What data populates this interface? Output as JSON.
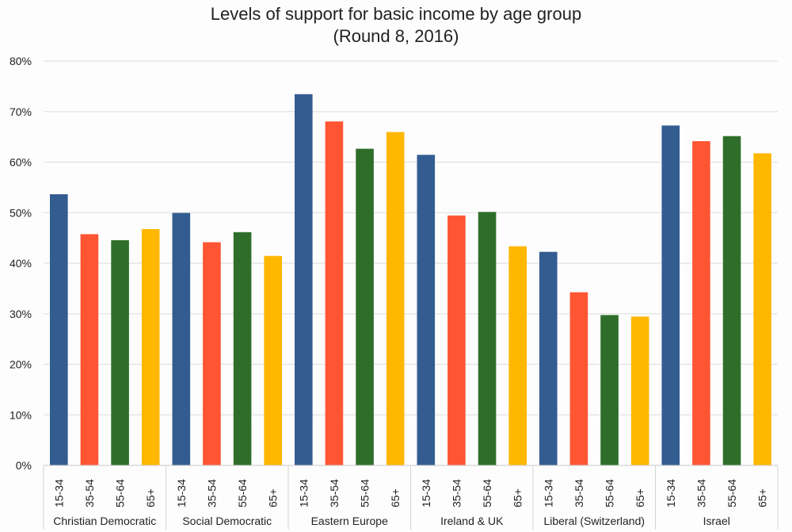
{
  "chart_data": {
    "type": "bar",
    "title": "Levels of support for basic income by age group",
    "subtitle": "(Round 8, 2016)",
    "xlabel": "",
    "ylabel": "",
    "ylim": [
      0,
      80
    ],
    "y_ticks": [
      "0%",
      "10%",
      "20%",
      "30%",
      "40%",
      "50%",
      "60%",
      "70%",
      "80%"
    ],
    "grid": true,
    "legend": "none",
    "age_groups": [
      "15-34",
      "35-54",
      "55-64",
      "65+"
    ],
    "colors": {
      "15-34": "#335c91",
      "35-54": "#ff5533",
      "55-64": "#2f6e2a",
      "65+": "#ffb700"
    },
    "groups": [
      {
        "name": "Christian Democratic",
        "values": [
          53.6,
          45.7,
          44.5,
          46.7
        ]
      },
      {
        "name": "Social Democratic",
        "values": [
          49.9,
          44.1,
          46.1,
          41.4
        ]
      },
      {
        "name": "Eastern Europe",
        "values": [
          73.4,
          68.0,
          62.6,
          65.9
        ]
      },
      {
        "name": "Ireland & UK",
        "values": [
          61.4,
          49.4,
          50.1,
          43.3
        ]
      },
      {
        "name": "Liberal (Switzerland)",
        "values": [
          42.2,
          34.2,
          29.7,
          29.4
        ]
      },
      {
        "name": "Israel",
        "values": [
          67.2,
          64.1,
          65.1,
          61.7
        ]
      }
    ]
  }
}
